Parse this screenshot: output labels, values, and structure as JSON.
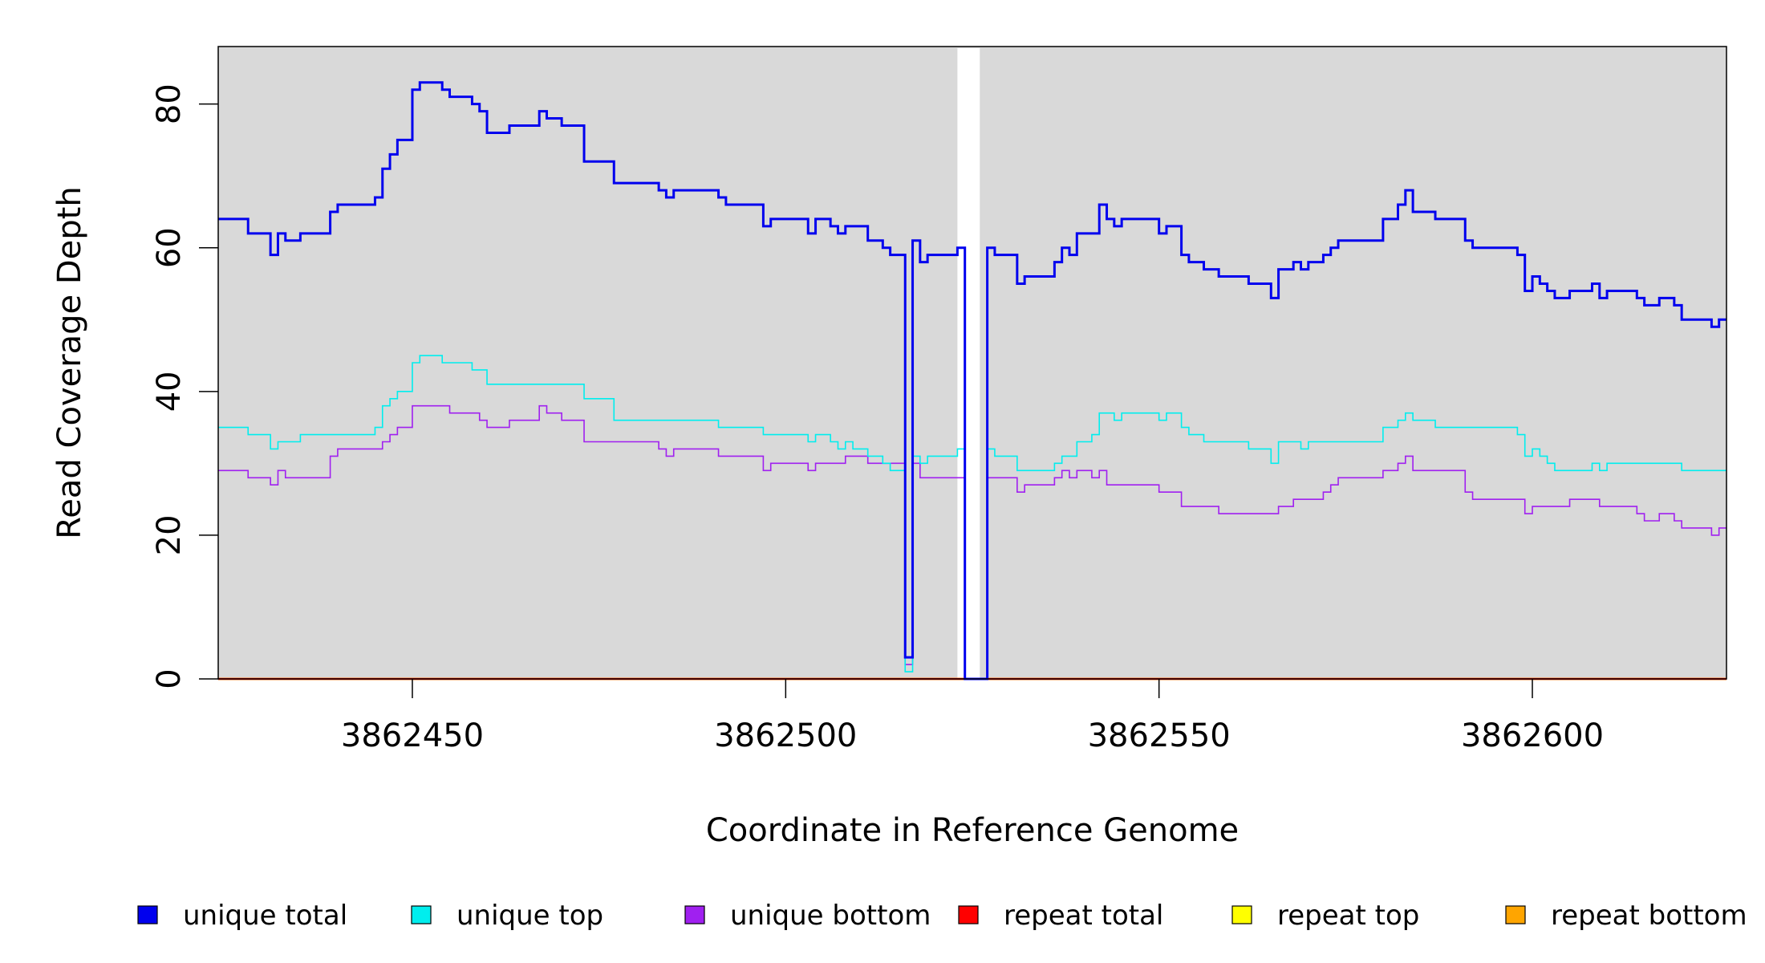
{
  "chart_data": {
    "type": "line",
    "xlabel": "Coordinate in Reference Genome",
    "ylabel": "Read Coverage Depth",
    "xlim": [
      3862424,
      3862626
    ],
    "ylim": [
      0,
      88
    ],
    "x_ticks": [
      3862450,
      3862500,
      3862550,
      3862600
    ],
    "y_ticks": [
      0,
      20,
      40,
      60,
      80
    ],
    "background": "#d9d9d9",
    "gap_region": [
      3862523,
      3862526
    ],
    "legend": {
      "placement": "bottom"
    },
    "series": [
      {
        "name": "unique total",
        "color": "#0000ee",
        "steps": [
          [
            3862424,
            64
          ],
          [
            3862428,
            62
          ],
          [
            3862431,
            59
          ],
          [
            3862432,
            62
          ],
          [
            3862433,
            61
          ],
          [
            3862435,
            62
          ],
          [
            3862439,
            65
          ],
          [
            3862440,
            66
          ],
          [
            3862445,
            67
          ],
          [
            3862446,
            71
          ],
          [
            3862447,
            73
          ],
          [
            3862448,
            75
          ],
          [
            3862450,
            82
          ],
          [
            3862451,
            83
          ],
          [
            3862454,
            82
          ],
          [
            3862455,
            81
          ],
          [
            3862458,
            80
          ],
          [
            3862459,
            79
          ],
          [
            3862460,
            76
          ],
          [
            3862463,
            77
          ],
          [
            3862467,
            79
          ],
          [
            3862468,
            78
          ],
          [
            3862470,
            77
          ],
          [
            3862473,
            72
          ],
          [
            3862477,
            69
          ],
          [
            3862483,
            68
          ],
          [
            3862484,
            67
          ],
          [
            3862485,
            68
          ],
          [
            3862491,
            67
          ],
          [
            3862492,
            66
          ],
          [
            3862497,
            63
          ],
          [
            3862498,
            64
          ],
          [
            3862503,
            62
          ],
          [
            3862504,
            64
          ],
          [
            3862506,
            63
          ],
          [
            3862507,
            62
          ],
          [
            3862508,
            63
          ],
          [
            3862511,
            61
          ],
          [
            3862513,
            60
          ],
          [
            3862514,
            59
          ],
          [
            3862516,
            3
          ],
          [
            3862517,
            61
          ],
          [
            3862518,
            58
          ],
          [
            3862519,
            59
          ],
          [
            3862523,
            60
          ],
          [
            3862524,
            0
          ],
          [
            3862527,
            60
          ],
          [
            3862528,
            59
          ],
          [
            3862531,
            55
          ],
          [
            3862532,
            56
          ],
          [
            3862536,
            58
          ],
          [
            3862537,
            60
          ],
          [
            3862538,
            59
          ],
          [
            3862539,
            62
          ],
          [
            3862542,
            66
          ],
          [
            3862543,
            64
          ],
          [
            3862544,
            63
          ],
          [
            3862545,
            64
          ],
          [
            3862550,
            62
          ],
          [
            3862551,
            63
          ],
          [
            3862553,
            59
          ],
          [
            3862554,
            58
          ],
          [
            3862556,
            57
          ],
          [
            3862558,
            56
          ],
          [
            3862562,
            55
          ],
          [
            3862565,
            53
          ],
          [
            3862566,
            57
          ],
          [
            3862568,
            58
          ],
          [
            3862569,
            57
          ],
          [
            3862570,
            58
          ],
          [
            3862572,
            59
          ],
          [
            3862573,
            60
          ],
          [
            3862574,
            61
          ],
          [
            3862580,
            64
          ],
          [
            3862582,
            66
          ],
          [
            3862583,
            68
          ],
          [
            3862584,
            65
          ],
          [
            3862587,
            64
          ],
          [
            3862591,
            61
          ],
          [
            3862592,
            60
          ],
          [
            3862598,
            59
          ],
          [
            3862599,
            54
          ],
          [
            3862600,
            56
          ],
          [
            3862601,
            55
          ],
          [
            3862602,
            54
          ],
          [
            3862603,
            53
          ],
          [
            3862605,
            54
          ],
          [
            3862608,
            55
          ],
          [
            3862609,
            53
          ],
          [
            3862610,
            54
          ],
          [
            3862614,
            53
          ],
          [
            3862615,
            52
          ],
          [
            3862617,
            53
          ],
          [
            3862619,
            52
          ],
          [
            3862620,
            50
          ],
          [
            3862624,
            49
          ],
          [
            3862625,
            50
          ]
        ],
        "end": 3862626
      },
      {
        "name": "unique top",
        "color": "#00eeee",
        "steps": [
          [
            3862424,
            35
          ],
          [
            3862428,
            34
          ],
          [
            3862431,
            32
          ],
          [
            3862432,
            33
          ],
          [
            3862435,
            34
          ],
          [
            3862445,
            35
          ],
          [
            3862446,
            38
          ],
          [
            3862447,
            39
          ],
          [
            3862448,
            40
          ],
          [
            3862450,
            44
          ],
          [
            3862451,
            45
          ],
          [
            3862454,
            44
          ],
          [
            3862458,
            43
          ],
          [
            3862460,
            41
          ],
          [
            3862473,
            39
          ],
          [
            3862477,
            36
          ],
          [
            3862491,
            35
          ],
          [
            3862497,
            34
          ],
          [
            3862503,
            33
          ],
          [
            3862504,
            34
          ],
          [
            3862506,
            33
          ],
          [
            3862507,
            32
          ],
          [
            3862508,
            33
          ],
          [
            3862509,
            32
          ],
          [
            3862511,
            31
          ],
          [
            3862513,
            30
          ],
          [
            3862514,
            29
          ],
          [
            3862516,
            1
          ],
          [
            3862517,
            31
          ],
          [
            3862518,
            30
          ],
          [
            3862519,
            31
          ],
          [
            3862523,
            32
          ],
          [
            3862524,
            0
          ],
          [
            3862527,
            32
          ],
          [
            3862528,
            31
          ],
          [
            3862531,
            29
          ],
          [
            3862536,
            30
          ],
          [
            3862537,
            31
          ],
          [
            3862539,
            33
          ],
          [
            3862541,
            34
          ],
          [
            3862542,
            37
          ],
          [
            3862544,
            36
          ],
          [
            3862545,
            37
          ],
          [
            3862550,
            36
          ],
          [
            3862551,
            37
          ],
          [
            3862553,
            35
          ],
          [
            3862554,
            34
          ],
          [
            3862556,
            33
          ],
          [
            3862562,
            32
          ],
          [
            3862565,
            30
          ],
          [
            3862566,
            33
          ],
          [
            3862569,
            32
          ],
          [
            3862570,
            33
          ],
          [
            3862580,
            35
          ],
          [
            3862582,
            36
          ],
          [
            3862583,
            37
          ],
          [
            3862584,
            36
          ],
          [
            3862587,
            35
          ],
          [
            3862598,
            34
          ],
          [
            3862599,
            31
          ],
          [
            3862600,
            32
          ],
          [
            3862601,
            31
          ],
          [
            3862602,
            30
          ],
          [
            3862603,
            29
          ],
          [
            3862608,
            30
          ],
          [
            3862609,
            29
          ],
          [
            3862610,
            30
          ],
          [
            3862620,
            29
          ]
        ],
        "end": 3862626
      },
      {
        "name": "unique bottom",
        "color": "#a020f0",
        "steps": [
          [
            3862424,
            29
          ],
          [
            3862428,
            28
          ],
          [
            3862431,
            27
          ],
          [
            3862432,
            29
          ],
          [
            3862433,
            28
          ],
          [
            3862439,
            31
          ],
          [
            3862440,
            32
          ],
          [
            3862446,
            33
          ],
          [
            3862447,
            34
          ],
          [
            3862448,
            35
          ],
          [
            3862450,
            38
          ],
          [
            3862455,
            37
          ],
          [
            3862459,
            36
          ],
          [
            3862460,
            35
          ],
          [
            3862463,
            36
          ],
          [
            3862467,
            38
          ],
          [
            3862468,
            37
          ],
          [
            3862470,
            36
          ],
          [
            3862473,
            33
          ],
          [
            3862483,
            32
          ],
          [
            3862484,
            31
          ],
          [
            3862485,
            32
          ],
          [
            3862491,
            31
          ],
          [
            3862497,
            29
          ],
          [
            3862498,
            30
          ],
          [
            3862503,
            29
          ],
          [
            3862504,
            30
          ],
          [
            3862508,
            31
          ],
          [
            3862511,
            30
          ],
          [
            3862516,
            2
          ],
          [
            3862517,
            30
          ],
          [
            3862518,
            28
          ],
          [
            3862524,
            0
          ],
          [
            3862527,
            28
          ],
          [
            3862531,
            26
          ],
          [
            3862532,
            27
          ],
          [
            3862536,
            28
          ],
          [
            3862537,
            29
          ],
          [
            3862538,
            28
          ],
          [
            3862539,
            29
          ],
          [
            3862541,
            28
          ],
          [
            3862542,
            29
          ],
          [
            3862543,
            27
          ],
          [
            3862550,
            26
          ],
          [
            3862553,
            24
          ],
          [
            3862558,
            23
          ],
          [
            3862566,
            24
          ],
          [
            3862568,
            25
          ],
          [
            3862572,
            26
          ],
          [
            3862573,
            27
          ],
          [
            3862574,
            28
          ],
          [
            3862580,
            29
          ],
          [
            3862582,
            30
          ],
          [
            3862583,
            31
          ],
          [
            3862584,
            29
          ],
          [
            3862591,
            26
          ],
          [
            3862592,
            25
          ],
          [
            3862599,
            23
          ],
          [
            3862600,
            24
          ],
          [
            3862605,
            25
          ],
          [
            3862609,
            24
          ],
          [
            3862614,
            23
          ],
          [
            3862615,
            22
          ],
          [
            3862617,
            23
          ],
          [
            3862619,
            22
          ],
          [
            3862620,
            21
          ],
          [
            3862624,
            20
          ],
          [
            3862625,
            21
          ]
        ],
        "end": 3862626
      },
      {
        "name": "repeat total",
        "color": "#ff0000",
        "steps": [
          [
            3862424,
            0
          ]
        ],
        "end": 3862626
      },
      {
        "name": "repeat top",
        "color": "#ffff00",
        "steps": [
          [
            3862424,
            0
          ]
        ],
        "end": 3862626
      },
      {
        "name": "repeat bottom",
        "color": "#ffa500",
        "steps": [
          [
            3862424,
            0
          ]
        ],
        "end": 3862626
      }
    ]
  }
}
